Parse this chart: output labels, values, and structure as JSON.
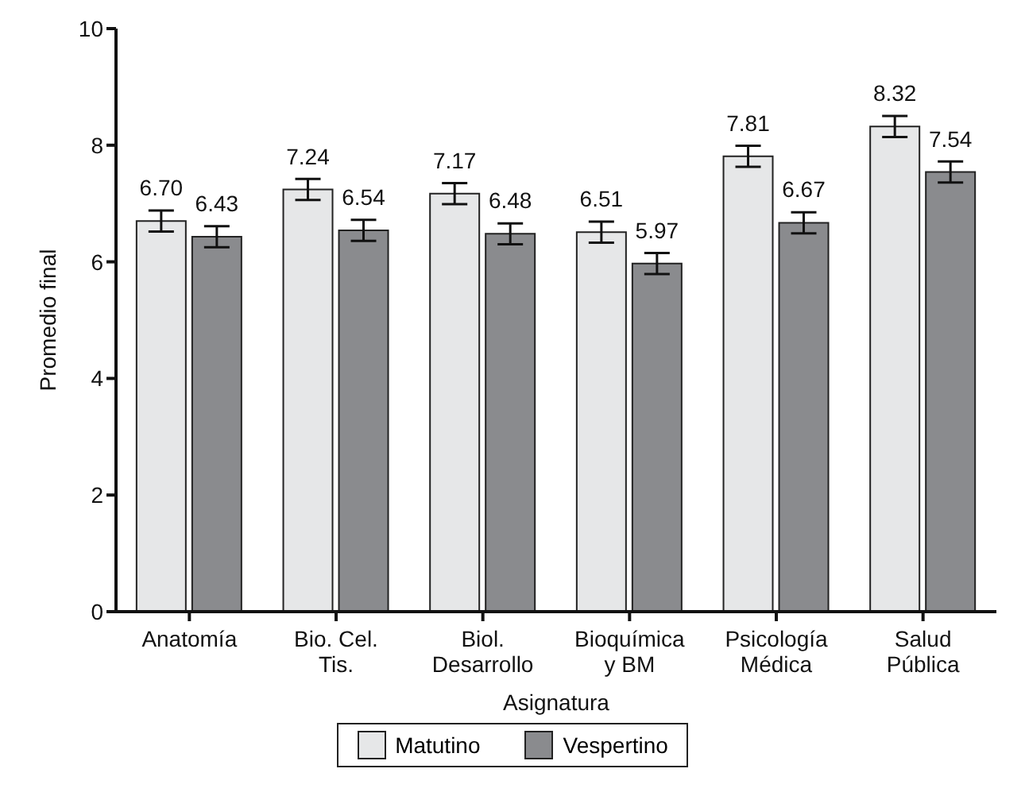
{
  "chart_data": {
    "type": "bar",
    "xlabel": "Asignatura",
    "ylabel": "Promedio final",
    "categories": [
      "Anatomía",
      "Bio. Cel.\nTis.",
      "Biol.\nDesarrollo",
      "Bioquímica\ny BM",
      "Psicología\nMédica",
      "Salud\nPública"
    ],
    "series": [
      {
        "name": "Matutino",
        "color": "#e6e7e8",
        "values": [
          6.7,
          7.24,
          7.17,
          6.51,
          7.81,
          8.32
        ],
        "value_labels": [
          "6.70",
          "7.24",
          "7.17",
          "6.51",
          "7.81",
          "8.32"
        ],
        "errors": [
          0.18,
          0.18,
          0.18,
          0.18,
          0.18,
          0.18
        ]
      },
      {
        "name": "Vespertino",
        "color": "#8a8b8e",
        "values": [
          6.43,
          6.54,
          6.48,
          5.97,
          6.67,
          7.54
        ],
        "value_labels": [
          "6.43",
          "6.54",
          "6.48",
          "5.97",
          "6.67",
          "7.54"
        ],
        "errors": [
          0.18,
          0.18,
          0.18,
          0.18,
          0.18,
          0.18
        ]
      }
    ],
    "ylim": [
      0,
      10
    ],
    "yticks": [
      0,
      2,
      4,
      6,
      8,
      10
    ],
    "grid": false,
    "legend": "bottom"
  }
}
